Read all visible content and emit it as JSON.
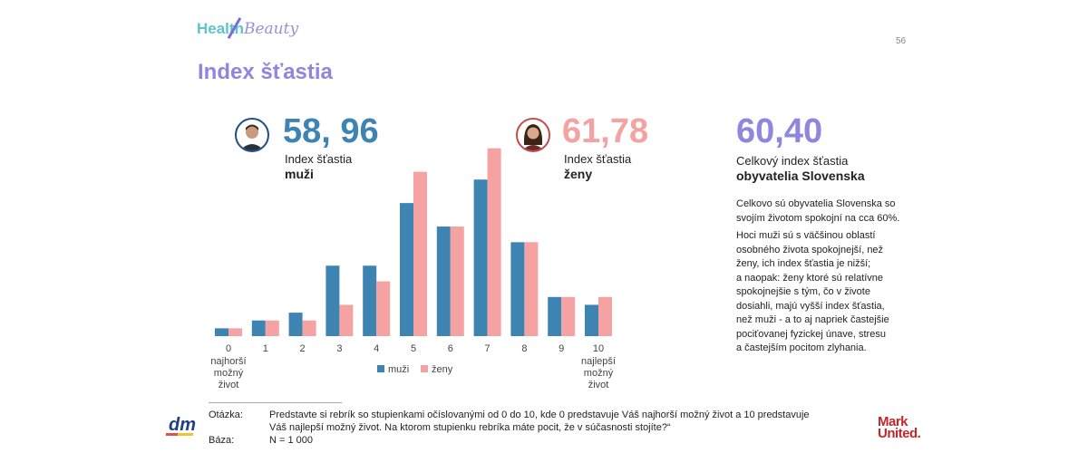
{
  "logo": {
    "health": "Health",
    "beauty": "Beauty"
  },
  "page_number": "56",
  "title": "Index šťastia",
  "men": {
    "value": "58, 96",
    "label": "Index šťastia",
    "label_bold": "muži"
  },
  "women": {
    "value": "61,78",
    "label": "Index šťastia",
    "label_bold": "ženy"
  },
  "total": {
    "value": "60,40",
    "label": "Celkový index šťastia",
    "label_bold": "obyvatelia Slovenska"
  },
  "para1": [
    "Celkovo sú obyvatelia Slovenska so",
    "svojím životom spokojní na cca 60%."
  ],
  "para2": [
    "Hoci muži sú s väčšinou oblastí",
    "osobného života spokojnejší, než",
    "ženy, ich index šťastia je nižší;",
    "a naopak: ženy ktoré sú relatívne",
    "spokojnejšie s tým, čo v živote",
    "dosiahli, majú vyšší index šťastia,",
    "než muži - a to aj napriek častejšie",
    "pociťovanej fyzickej únave, stresu",
    "a častejším pocitom zlyhania."
  ],
  "question_label": "Otázka:",
  "question_lines": [
    "Predstavte si rebrík so stupienkami očíslovanými od 0 do 10, kde 0 predstavuje Váš najhorší možný život a 10 predstavuje",
    "Váš najlepší možný život. Na ktorom stupienku rebríka máte pocit, že v súčasnosti stojíte?“"
  ],
  "base_label": "Báza:",
  "base_value": "N = 1 000",
  "brand_left": "dm",
  "brand_right": [
    "Mark",
    "United."
  ],
  "colors": {
    "men": "#3e84b3",
    "women": "#f4a2a2",
    "accent": "#8f86dd"
  },
  "chart_data": {
    "type": "bar",
    "categories": [
      "0",
      "1",
      "2",
      "3",
      "4",
      "5",
      "6",
      "7",
      "8",
      "9",
      "10"
    ],
    "category_sublabels": {
      "0": [
        "najhorší",
        "možný",
        "život"
      ],
      "10": [
        "najlepší",
        "možný",
        "život"
      ]
    },
    "series": [
      {
        "name": "muži",
        "values": [
          1,
          2,
          3,
          9,
          9,
          17,
          14,
          20,
          12,
          5,
          4
        ]
      },
      {
        "name": "ženy",
        "values": [
          1,
          2,
          2,
          4,
          7,
          21,
          14,
          24,
          12,
          5,
          5
        ]
      }
    ],
    "ylim": [
      0,
      25
    ],
    "grid": false,
    "legend": "bottom-center"
  }
}
